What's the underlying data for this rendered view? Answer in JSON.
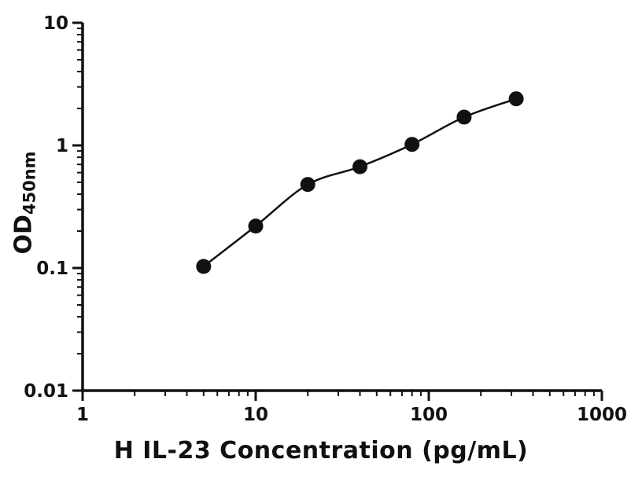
{
  "chart_data": {
    "type": "scatter",
    "title": "",
    "xlabel": "H IL-23 Concentration (pg/mL)",
    "ylabel_main": "OD",
    "ylabel_sub": "450nm",
    "x_scale": "log",
    "y_scale": "log",
    "xlim": [
      1,
      1000
    ],
    "ylim": [
      0.01,
      10
    ],
    "x": [
      5,
      10,
      20,
      40,
      80,
      160,
      320
    ],
    "y": [
      0.103,
      0.22,
      0.48,
      0.67,
      1.02,
      1.7,
      2.4
    ],
    "x_ticks": [
      1,
      10,
      100,
      1000
    ],
    "x_tick_labels": [
      "1",
      "10",
      "100",
      "1000"
    ],
    "y_ticks": [
      0.01,
      0.1,
      1,
      10
    ],
    "y_tick_labels": [
      "0.01",
      "0.1",
      "1",
      "10"
    ],
    "grid": false,
    "legend": "none",
    "marker": "circle",
    "marker_color": "#111111",
    "line_color": "#111111",
    "axis_color": "#111111",
    "fit": "smooth curve through points"
  }
}
